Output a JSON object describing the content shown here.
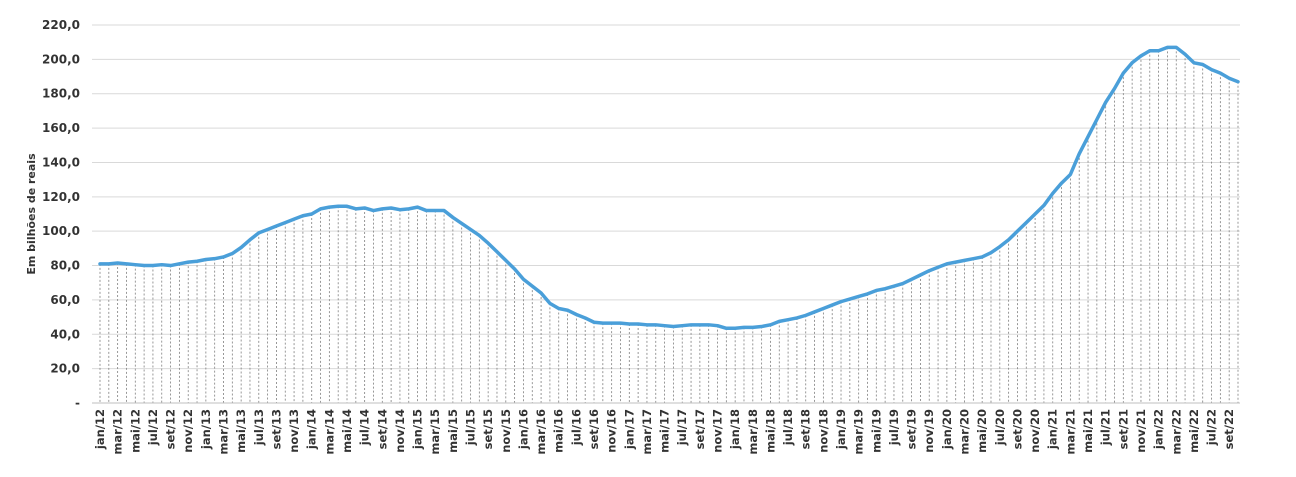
{
  "chart_data": {
    "type": "line",
    "ylabel": "Em bilhões de reais",
    "ylim": [
      0,
      220
    ],
    "y_ticks": [
      "-",
      "20,0",
      "40,0",
      "60,0",
      "80,0",
      "100,0",
      "120,0",
      "140,0",
      "160,0",
      "180,0",
      "200,0",
      "220,0"
    ],
    "x_tick_labels": [
      "jan/12",
      "mar/12",
      "mai/12",
      "jul/12",
      "set/12",
      "nov/12",
      "jan/13",
      "mar/13",
      "mai/13",
      "jul/13",
      "set/13",
      "nov/13",
      "jan/14",
      "mar/14",
      "mai/14",
      "jul/14",
      "set/14",
      "nov/14",
      "jan/15",
      "mar/15",
      "mai/15",
      "jul/15",
      "set/15",
      "nov/15",
      "jan/16",
      "mar/16",
      "mai/16",
      "jul/16",
      "set/16",
      "nov/16",
      "jan/17",
      "mar/17",
      "mai/17",
      "jul/17",
      "set/17",
      "nov/17",
      "jan/18",
      "mar/18",
      "mai/18",
      "jul/18",
      "set/18",
      "nov/18",
      "jan/19",
      "mar/19",
      "mai/19",
      "jul/19",
      "set/19",
      "nov/19",
      "jan/20",
      "mar/20",
      "mai/20",
      "jul/20",
      "set/20",
      "nov/20",
      "jan/21",
      "mar/21",
      "mai/21",
      "jul/21",
      "set/21",
      "nov/21",
      "jan/22",
      "mar/22",
      "mai/22",
      "jul/22",
      "set/22"
    ],
    "grid": true,
    "drop_lines": true,
    "line_color": "#4A9FD9",
    "grid_color": "#D9D9D9",
    "series": [
      {
        "values": [
          81,
          81,
          81.5,
          81,
          80.5,
          80,
          80,
          80.5,
          80,
          81,
          82,
          82.5,
          83.5,
          84,
          85,
          87,
          90.5,
          95,
          99,
          101,
          103,
          105,
          107,
          109,
          110,
          113,
          114,
          114.5,
          114.5,
          113,
          113.5,
          112,
          113,
          113.5,
          112.5,
          113,
          114,
          112,
          112,
          112,
          108,
          104.5,
          101,
          97.5,
          93,
          88,
          83,
          78,
          72,
          68,
          64,
          58,
          55,
          54,
          51.5,
          49.5,
          47,
          46.5,
          46.5,
          46.5,
          46,
          46,
          45.5,
          45.5,
          45,
          44.5,
          45,
          45.5,
          45.5,
          45.5,
          45,
          43.5,
          43.5,
          44,
          44,
          44.5,
          45.5,
          47.5,
          48.5,
          49.5,
          51,
          53,
          55,
          57,
          59,
          60.5,
          62,
          63.5,
          65.5,
          66.5,
          68,
          69.5,
          72,
          74.5,
          77,
          79,
          81,
          82,
          83,
          84,
          85,
          87.5,
          91,
          95,
          100,
          105,
          110,
          115,
          122,
          128,
          133,
          145,
          155,
          165,
          175,
          183,
          192,
          198,
          202,
          205,
          205,
          207,
          207,
          203,
          198,
          197,
          194,
          192,
          189,
          187
        ]
      }
    ]
  }
}
